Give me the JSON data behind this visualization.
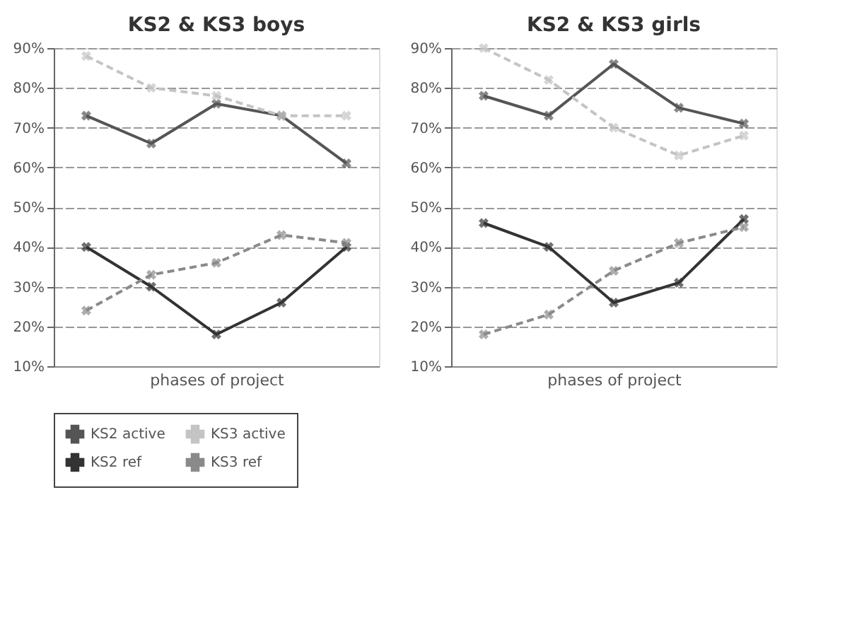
{
  "chart_data": [
    {
      "type": "line",
      "title": "KS2 & KS3 boys",
      "xlabel": "phases of project",
      "categories": [
        null,
        null,
        null,
        null,
        null
      ],
      "series": [
        {
          "name": "KS2 active",
          "color": "#555555",
          "line_style": "solid",
          "values": [
            73,
            66,
            76,
            73,
            61
          ]
        },
        {
          "name": "KS3 active",
          "color": "#c4c4c4",
          "line_style": "dashed",
          "values": [
            88,
            80,
            78,
            73,
            73
          ]
        },
        {
          "name": "KS2 ref",
          "color": "#333333",
          "line_style": "solid",
          "values": [
            40,
            30,
            18,
            26,
            40
          ]
        },
        {
          "name": "KS3 ref",
          "color": "#8a8a8a",
          "line_style": "dashed",
          "values": [
            24,
            33,
            36,
            43,
            41
          ]
        }
      ],
      "ylim": [
        10,
        90
      ],
      "yticks": [
        {
          "value": 10,
          "label": "10%"
        },
        {
          "value": 20,
          "label": "20%"
        },
        {
          "value": 30,
          "label": "30%"
        },
        {
          "value": 40,
          "label": "40%"
        },
        {
          "value": 50,
          "label": "50%"
        },
        {
          "value": 60,
          "label": "60%"
        },
        {
          "value": 70,
          "label": "70%"
        },
        {
          "value": 80,
          "label": "80%"
        },
        {
          "value": 90,
          "label": "90%"
        }
      ],
      "grid": "y",
      "marker": "cross",
      "tick_labels": "y",
      "legend": "bottom"
    },
    {
      "type": "line",
      "title": "KS2 & KS3 girls",
      "xlabel": "phases of project",
      "categories": [
        null,
        null,
        null,
        null,
        null
      ],
      "series": [
        {
          "color": "#555555",
          "line_style": "solid",
          "values": [
            78,
            73,
            86,
            75,
            71
          ]
        },
        {
          "color": "#c4c4c4",
          "line_style": "dashed",
          "values": [
            90,
            82,
            70,
            63,
            68
          ]
        },
        {
          "color": "#333333",
          "line_style": "solid",
          "values": [
            46,
            40,
            26,
            31,
            47
          ]
        },
        {
          "color": "#8a8a8a",
          "line_style": "dashed",
          "values": [
            18,
            23,
            34,
            41,
            45
          ]
        }
      ],
      "ylim": [
        10,
        90
      ],
      "yticks": [
        {
          "value": 10,
          "label": "10%"
        },
        {
          "value": 20,
          "label": "20%"
        },
        {
          "value": 30,
          "label": "30%"
        },
        {
          "value": 40,
          "label": "40%"
        },
        {
          "value": 50,
          "label": "50%"
        },
        {
          "value": 60,
          "label": "60%"
        },
        {
          "value": 70,
          "label": "70%"
        },
        {
          "value": 80,
          "label": "80%"
        },
        {
          "value": 90,
          "label": "90%"
        }
      ],
      "grid": "y",
      "marker": "cross",
      "tick_labels": "y"
    }
  ]
}
